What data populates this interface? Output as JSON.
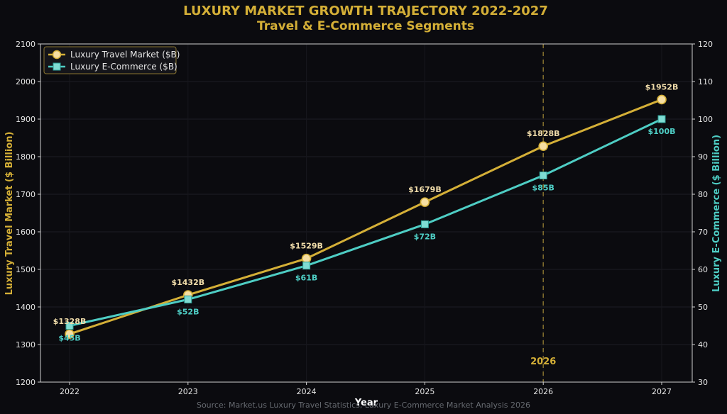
{
  "chart_data": {
    "type": "line",
    "title": "LUXURY MARKET GROWTH TRAJECTORY 2022-2027",
    "subtitle": "Travel & E-Commerce Segments",
    "xlabel": "Year",
    "ylabel_left": "Luxury Travel Market ($ Billion)",
    "ylabel_right": "Luxury E-Commerce ($ Billion)",
    "x": [
      "2022",
      "2023",
      "2024",
      "2025",
      "2026",
      "2027"
    ],
    "ylim_left": [
      1200,
      2100
    ],
    "yticks_left": [
      "1200",
      "1300",
      "1400",
      "1500",
      "1600",
      "1700",
      "1800",
      "1900",
      "2000",
      "2100"
    ],
    "ylim_right": [
      30,
      120
    ],
    "yticks_right": [
      "30",
      "40",
      "50",
      "60",
      "70",
      "80",
      "90",
      "100",
      "110",
      "120"
    ],
    "series": [
      {
        "name": "Luxury Travel Market ($B)",
        "axis": "left",
        "color": "#d4af37",
        "marker": "circle",
        "values": [
          1328,
          1432,
          1529,
          1679,
          1828,
          1952
        ],
        "labels": [
          "$1328B",
          "$1432B",
          "$1529B",
          "$1679B",
          "$1828B",
          "$1952B"
        ]
      },
      {
        "name": "Luxury E-Commerce ($B)",
        "axis": "right",
        "color": "#4ecdc4",
        "marker": "square",
        "values": [
          45,
          52,
          61,
          72,
          85,
          100
        ],
        "labels": [
          "$45B",
          "$52B",
          "$61B",
          "$72B",
          "$85B",
          "$100B"
        ]
      }
    ],
    "annotation": {
      "x": "2026",
      "label": "2026",
      "style": "dashed-vertical"
    },
    "legend": "top-left",
    "grid": true,
    "source": "Source: Market.us Luxury Travel Statistics, Luxury E-Commerce Market Analysis 2026"
  }
}
